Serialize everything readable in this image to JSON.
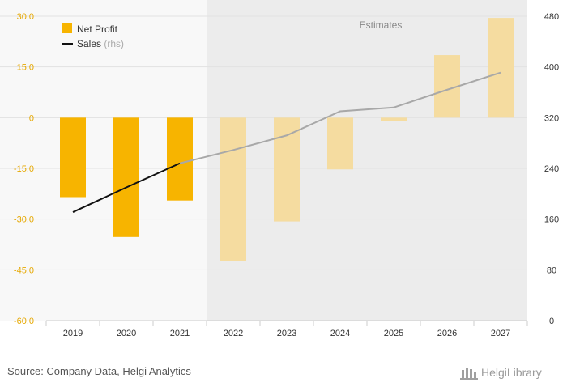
{
  "chart_data": {
    "type": "bar",
    "categories": [
      "2019",
      "2020",
      "2021",
      "2022",
      "2023",
      "2024",
      "2025",
      "2026",
      "2027"
    ],
    "estimates_label": "Estimates",
    "estimates_from": "2022",
    "series": [
      {
        "name": "Net Profit",
        "type": "bar",
        "axis": "left",
        "color": "#f7b400",
        "estimate_color": "#f5dca0",
        "values": [
          -23.5,
          -35.3,
          -24.5,
          -42.3,
          -30.7,
          -15.3,
          -1.0,
          18.5,
          29.5
        ]
      },
      {
        "name": "Sales",
        "axis_note": "(rhs)",
        "type": "line",
        "axis": "right",
        "color": "#111111",
        "estimate_color": "#a8a8a8",
        "values": [
          171,
          210,
          248,
          269,
          292,
          330,
          336,
          364,
          391
        ]
      }
    ],
    "y_left": {
      "min": -60,
      "max": 30,
      "ticks": [
        "30.0",
        "15.0",
        "0",
        "-15.0",
        "-30.0",
        "-45.0",
        "-60.0"
      ],
      "tick_values": [
        30,
        15,
        0,
        -15,
        -30,
        -45,
        -60
      ]
    },
    "y_right": {
      "min": 0,
      "max": 480,
      "ticks": [
        "480",
        "400",
        "320",
        "240",
        "160",
        "80",
        "0"
      ],
      "tick_values": [
        480,
        400,
        320,
        240,
        160,
        80,
        0
      ]
    },
    "grid": true,
    "legend_position": "top-left"
  },
  "footer": {
    "source": "Source: Company Data, Helgi Analytics",
    "logo": "HelgiLibrary"
  }
}
